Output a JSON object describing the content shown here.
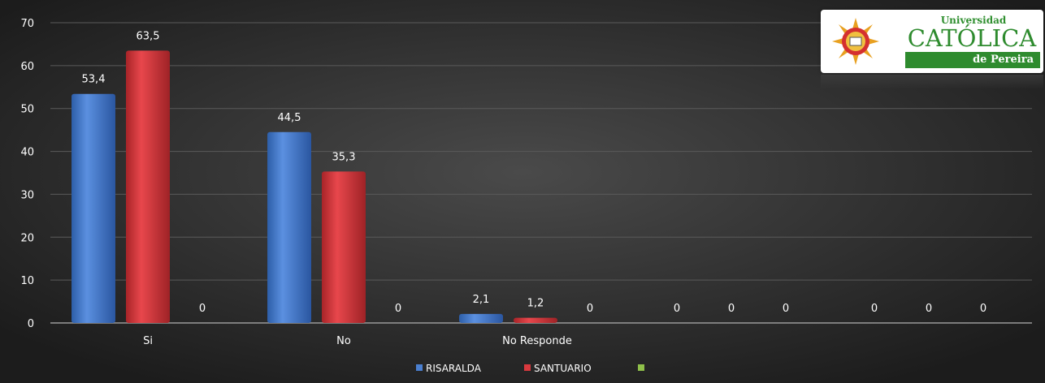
{
  "colors": {
    "background_center": "#4a4a4a",
    "background_edge": "#1c1c1c",
    "risaralda": "#4a7fd0",
    "santuario": "#d9393e",
    "third_series": "#8fc04a",
    "label_text": "#ffffff",
    "gridline": "#5a5a5a"
  },
  "logo": {
    "line1": "Universidad",
    "line2": "CATÓLICA",
    "line3": "de Pereira"
  },
  "chart_data": {
    "type": "bar",
    "title": "",
    "xlabel": "",
    "ylabel": "",
    "ylim": [
      0,
      70
    ],
    "yticks": [
      0,
      10,
      20,
      30,
      40,
      50,
      60,
      70
    ],
    "categories": [
      "Si",
      "No",
      "No Responde",
      "",
      ""
    ],
    "series": [
      {
        "name": "RISARALDA",
        "values": [
          53.4,
          44.5,
          2.1,
          0,
          0
        ]
      },
      {
        "name": "SANTUARIO",
        "values": [
          63.5,
          35.3,
          1.2,
          0,
          0
        ]
      },
      {
        "name": "",
        "values": [
          0,
          0,
          0,
          0,
          0
        ]
      }
    ],
    "data_labels": [
      [
        "53,4",
        "44,5",
        "2,1",
        "0",
        "0"
      ],
      [
        "63,5",
        "35,3",
        "1,2",
        "0",
        "0"
      ],
      [
        "0",
        "0",
        "0",
        "0",
        "0"
      ]
    ],
    "grid": true,
    "legend_position": "bottom"
  }
}
